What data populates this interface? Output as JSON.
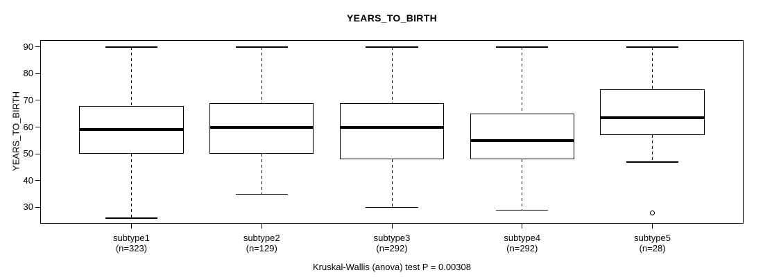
{
  "chart_data": {
    "type": "boxplot",
    "title": "YEARS_TO_BIRTH",
    "ylabel": "YEARS_TO_BIRTH",
    "xlabel": "",
    "caption": "Kruskal-Wallis (anova) test P = 0.00308",
    "y_ticks": [
      30,
      40,
      50,
      60,
      70,
      80,
      90
    ],
    "ylim": [
      23.9,
      92.5
    ],
    "grid": false,
    "legend": "none",
    "colors": {
      "line": "#000000",
      "background": "#ffffff"
    },
    "groups": [
      {
        "label": "subtype1",
        "sublabel": "(n=323)",
        "whisker_low": 26,
        "q1": 50,
        "median": 59,
        "q3": 68,
        "whisker_high": 90,
        "outliers": []
      },
      {
        "label": "subtype2",
        "sublabel": "(n=129)",
        "whisker_low": 35,
        "q1": 50,
        "median": 60,
        "q3": 69,
        "whisker_high": 90,
        "outliers": []
      },
      {
        "label": "subtype3",
        "sublabel": "(n=292)",
        "whisker_low": 30,
        "q1": 48,
        "median": 60,
        "q3": 69,
        "whisker_high": 90,
        "outliers": []
      },
      {
        "label": "subtype4",
        "sublabel": "(n=292)",
        "whisker_low": 29,
        "q1": 48,
        "median": 55,
        "q3": 65,
        "whisker_high": 90,
        "outliers": []
      },
      {
        "label": "subtype5",
        "sublabel": "(n=28)",
        "whisker_low": 47,
        "q1": 57,
        "median": 63.5,
        "q3": 74,
        "whisker_high": 90,
        "outliers": [
          28
        ]
      }
    ]
  }
}
